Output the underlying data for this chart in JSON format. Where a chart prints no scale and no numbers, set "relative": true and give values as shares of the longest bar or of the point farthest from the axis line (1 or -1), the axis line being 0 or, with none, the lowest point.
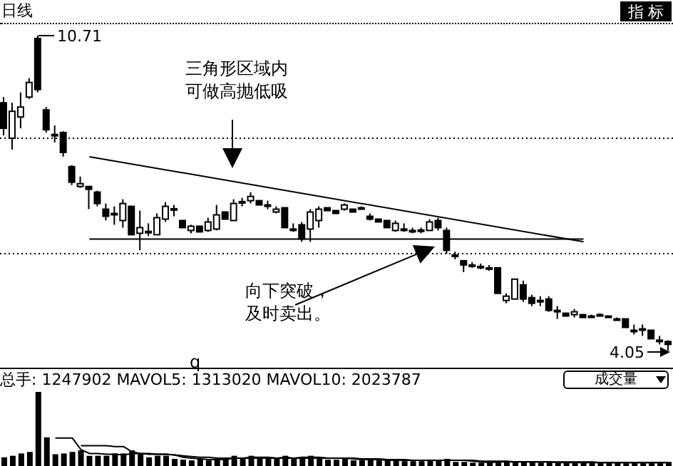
{
  "chart_data": [
    {
      "type": "candlestick",
      "title": "日线",
      "tick_labels": false,
      "categories": [
        null,
        null,
        null,
        null,
        null,
        null,
        null,
        null,
        null,
        null,
        null,
        null,
        null,
        null,
        null,
        null,
        null,
        null,
        null,
        null,
        null,
        null,
        null,
        null,
        null,
        null,
        null,
        null,
        null,
        null,
        null,
        null,
        null,
        null,
        null,
        null,
        null,
        null,
        null,
        null,
        null,
        null,
        null,
        null,
        null,
        null,
        null,
        null,
        null,
        null,
        null,
        null,
        null,
        null,
        null,
        null,
        null,
        null,
        null,
        null,
        null,
        null,
        null,
        null,
        null,
        null,
        null,
        null,
        null,
        null,
        null,
        null,
        null,
        null,
        null,
        null,
        null,
        null,
        null
      ],
      "ohlc": [
        [
          9.29,
          9.41,
          8.6,
          8.75
        ],
        [
          8.54,
          9.29,
          8.3,
          9.11
        ],
        [
          8.99,
          9.51,
          8.75,
          9.2
        ],
        [
          9.41,
          9.81,
          9.37,
          9.72
        ],
        [
          10.65,
          10.71,
          9.51,
          9.57
        ],
        [
          9.14,
          9.2,
          8.66,
          8.72
        ],
        [
          8.62,
          8.81,
          8.45,
          8.6
        ],
        [
          8.66,
          8.69,
          8.15,
          8.24
        ],
        [
          7.94,
          7.97,
          7.55,
          7.61
        ],
        [
          7.52,
          7.73,
          7.49,
          7.58
        ],
        [
          7.52,
          7.52,
          7.04,
          7.46
        ],
        [
          7.4,
          7.43,
          7.1,
          7.16
        ],
        [
          7.04,
          7.16,
          6.8,
          6.89
        ],
        [
          6.95,
          7.1,
          6.71,
          6.94
        ],
        [
          6.8,
          7.25,
          6.65,
          7.16
        ],
        [
          7.1,
          7.1,
          6.5,
          6.5
        ],
        [
          6.53,
          7.01,
          6.17,
          6.65
        ],
        [
          6.56,
          6.74,
          6.47,
          6.57
        ],
        [
          6.5,
          6.95,
          6.5,
          6.86
        ],
        [
          6.83,
          7.19,
          6.77,
          7.1
        ],
        [
          7.04,
          7.13,
          6.89,
          7.05
        ],
        [
          6.8,
          6.8,
          6.65,
          6.65
        ],
        [
          6.59,
          6.71,
          6.53,
          6.68
        ],
        [
          6.68,
          6.68,
          6.56,
          6.56
        ],
        [
          6.59,
          6.86,
          6.56,
          6.77
        ],
        [
          6.62,
          7.13,
          6.59,
          6.92
        ],
        [
          6.98,
          6.98,
          6.83,
          6.83
        ],
        [
          6.8,
          7.25,
          6.8,
          7.16
        ],
        [
          7.19,
          7.28,
          7.1,
          7.2
        ],
        [
          7.22,
          7.4,
          7.16,
          7.31
        ],
        [
          7.22,
          7.22,
          7.13,
          7.13
        ],
        [
          7.13,
          7.22,
          7.04,
          7.12
        ],
        [
          6.98,
          7.1,
          6.95,
          7.04
        ],
        [
          7.07,
          7.07,
          6.65,
          6.65
        ],
        [
          6.62,
          6.74,
          6.56,
          6.61
        ],
        [
          6.71,
          6.77,
          6.35,
          6.41
        ],
        [
          6.62,
          7.04,
          6.35,
          6.98
        ],
        [
          6.8,
          7.1,
          6.65,
          7.04
        ],
        [
          7.07,
          7.07,
          7.01,
          7.01
        ],
        [
          7.01,
          7.01,
          6.95,
          6.95
        ],
        [
          7.04,
          7.16,
          7.01,
          7.13
        ],
        [
          7.04,
          7.04,
          6.98,
          6.98
        ],
        [
          7.07,
          7.1,
          7.04,
          7.06
        ],
        [
          6.89,
          6.95,
          6.8,
          6.83
        ],
        [
          6.83,
          6.83,
          6.77,
          6.77
        ],
        [
          6.8,
          6.8,
          6.65,
          6.65
        ],
        [
          6.59,
          6.8,
          6.56,
          6.74
        ],
        [
          6.62,
          6.74,
          6.56,
          6.61
        ],
        [
          6.59,
          6.65,
          6.53,
          6.58
        ],
        [
          6.59,
          6.65,
          6.53,
          6.6
        ],
        [
          6.59,
          6.83,
          6.59,
          6.77
        ],
        [
          6.8,
          6.86,
          6.59,
          6.65
        ],
        [
          6.59,
          6.65,
          6.1,
          6.17
        ],
        [
          6.07,
          6.14,
          5.98,
          6.06
        ],
        [
          5.95,
          5.95,
          5.71,
          5.86
        ],
        [
          5.86,
          5.92,
          5.8,
          5.85
        ],
        [
          5.83,
          5.89,
          5.77,
          5.82
        ],
        [
          5.8,
          5.86,
          5.74,
          5.79
        ],
        [
          5.8,
          5.8,
          5.26,
          5.26
        ],
        [
          5.11,
          5.26,
          5.05,
          5.2
        ],
        [
          5.14,
          5.56,
          5.14,
          5.56
        ],
        [
          5.44,
          5.53,
          5.08,
          5.14
        ],
        [
          5.17,
          5.23,
          4.99,
          5.05
        ],
        [
          5.11,
          5.2,
          4.99,
          5.1
        ],
        [
          5.14,
          5.2,
          4.87,
          4.9
        ],
        [
          4.9,
          4.99,
          4.72,
          4.89
        ],
        [
          4.84,
          4.84,
          4.78,
          4.78
        ],
        [
          4.81,
          4.93,
          4.75,
          4.87
        ],
        [
          4.81,
          4.81,
          4.75,
          4.75
        ],
        [
          4.78,
          4.81,
          4.75,
          4.77
        ],
        [
          4.81,
          4.84,
          4.78,
          4.8
        ],
        [
          4.78,
          4.78,
          4.75,
          4.75
        ],
        [
          4.72,
          4.75,
          4.69,
          4.71
        ],
        [
          4.72,
          4.72,
          4.54,
          4.54
        ],
        [
          4.48,
          4.6,
          4.39,
          4.47
        ],
        [
          4.51,
          4.6,
          4.36,
          4.5
        ],
        [
          4.48,
          4.48,
          4.3,
          4.3
        ],
        [
          4.27,
          4.36,
          4.18,
          4.26
        ],
        [
          4.24,
          4.27,
          4.05,
          4.18
        ]
      ],
      "series": [
        {
          "type": "line",
          "values": [
            null,
            null,
            null,
            null,
            null,
            null,
            null,
            null,
            null,
            null,
            8.15,
            null,
            null,
            null,
            null,
            null,
            null,
            null,
            null,
            null,
            null,
            null,
            null,
            null,
            null,
            null,
            null,
            null,
            null,
            null,
            null,
            null,
            null,
            null,
            null,
            null,
            null,
            null,
            null,
            null,
            null,
            null,
            null,
            null,
            null,
            null,
            null,
            null,
            null,
            null,
            null,
            null,
            null,
            null,
            null,
            null,
            null,
            null,
            null,
            null,
            null,
            null,
            null,
            null,
            null,
            null,
            null,
            null,
            6.35,
            null,
            null,
            null,
            null,
            null,
            null,
            null,
            null,
            null,
            null
          ],
          "color": "#000000"
        },
        {
          "type": "line",
          "values": [
            null,
            null,
            null,
            null,
            null,
            null,
            null,
            null,
            null,
            null,
            6.41,
            null,
            null,
            null,
            null,
            null,
            null,
            null,
            null,
            null,
            null,
            null,
            null,
            null,
            null,
            null,
            null,
            null,
            null,
            null,
            null,
            null,
            null,
            null,
            null,
            null,
            null,
            null,
            null,
            null,
            null,
            null,
            null,
            null,
            null,
            null,
            null,
            null,
            null,
            null,
            null,
            null,
            null,
            null,
            null,
            null,
            null,
            null,
            null,
            null,
            null,
            null,
            null,
            null,
            null,
            null,
            null,
            null,
            6.41,
            null,
            null,
            null,
            null,
            null,
            null,
            null,
            null,
            null,
            null
          ],
          "color": "#000000"
        }
      ],
      "ref_lines": [
        {
          "axis": "y",
          "value": 8.54,
          "color": "#000000",
          "line_style": "dotted"
        },
        {
          "axis": "y",
          "value": 6.1,
          "color": "#000000",
          "line_style": "dotted"
        }
      ],
      "annotations": [
        "三角形区域内",
        "可做高抛低吸",
        "向下突破，",
        "及时卖出。",
        "10.71",
        "4.05",
        "q",
        "指 标"
      ]
    },
    {
      "type": "bar",
      "relative": true,
      "tick_labels": false,
      "title": "总手: 1247902 MAVOL5: 1313020 MAVOL10: 2023787",
      "categories": [
        null,
        null,
        null,
        null,
        null,
        null,
        null,
        null,
        null,
        null,
        null,
        null,
        null,
        null,
        null,
        null,
        null,
        null,
        null,
        null,
        null,
        null,
        null,
        null,
        null,
        null,
        null,
        null,
        null,
        null,
        null,
        null,
        null,
        null,
        null,
        null,
        null,
        null,
        null,
        null,
        null,
        null,
        null,
        null,
        null,
        null,
        null,
        null,
        null,
        null,
        null,
        null,
        null,
        null,
        null,
        null,
        null,
        null,
        null,
        null,
        null,
        null,
        null,
        null,
        null,
        null,
        null,
        null,
        null,
        null,
        null,
        null,
        null,
        null,
        null,
        null,
        null,
        null,
        null
      ],
      "series": [
        {
          "color": "#000000",
          "values": [
            0.15,
            0.17,
            0.2,
            0.22,
            1,
            0.41,
            0.19,
            0.2,
            0.22,
            0.24,
            0.17,
            0.17,
            0.17,
            0.2,
            0.2,
            0.24,
            0.2,
            0.15,
            0.17,
            0.17,
            0.13,
            0.12,
            0.11,
            0.13,
            0.11,
            0.14,
            0.13,
            0.17,
            0.14,
            0.17,
            0.13,
            0.15,
            0.13,
            0.17,
            0.13,
            0.15,
            0.17,
            0.15,
            0.12,
            0.12,
            0.13,
            0.11,
            0.11,
            0.12,
            0.11,
            0.11,
            0.12,
            0.1,
            0.1,
            0.1,
            0.11,
            0.12,
            0.13,
            0.09,
            0.09,
            0.08,
            0.08,
            0.08,
            0.1,
            0.09,
            0.1,
            0.09,
            0.09,
            0.08,
            0.09,
            0.08,
            0.08,
            0.08,
            0.08,
            0.08,
            0.08,
            0.09,
            0.08,
            0.09,
            0.08,
            0.08,
            0.08,
            0.09,
            0.09
          ]
        },
        {
          "type": "line",
          "color": "#000000",
          "values": [
            null,
            null,
            null,
            null,
            null,
            null,
            0.4,
            0.4,
            0.4,
            0.25,
            0.2,
            0.2,
            0.19,
            0.19,
            0.18,
            0.2,
            0.2,
            0.2,
            0.19,
            0.19,
            0.18,
            0.15,
            0.14,
            0.13,
            0.12,
            0.12,
            0.12,
            0.14,
            0.14,
            0.15,
            0.15,
            0.15,
            0.14,
            0.15,
            0.14,
            0.15,
            0.15,
            0.15,
            0.14,
            0.14,
            0.14,
            0.13,
            0.12,
            0.12,
            0.12,
            0.11,
            0.11,
            0.11,
            0.11,
            0.11,
            0.11,
            0.11,
            0.11,
            0.11,
            0.11,
            0.1,
            0.09,
            0.08,
            0.09,
            0.09,
            0.09,
            0.09,
            0.09,
            0.09,
            0.09,
            0.08,
            0.08,
            0.08,
            0.08,
            0.08,
            0.08,
            0.08,
            0.08,
            0.08,
            0.08,
            0.08,
            0.08,
            0.08,
            0.08
          ]
        },
        {
          "type": "line",
          "color": "#000000",
          "values": [
            null,
            null,
            null,
            null,
            null,
            null,
            null,
            null,
            null,
            0.3,
            0.3,
            0.3,
            0.3,
            0.29,
            0.29,
            0.22,
            0.2,
            0.19,
            0.19,
            0.19,
            0.18,
            0.17,
            0.16,
            0.15,
            0.15,
            0.14,
            0.14,
            0.14,
            0.14,
            0.14,
            0.14,
            0.14,
            0.14,
            0.14,
            0.14,
            0.14,
            0.14,
            0.14,
            0.14,
            0.14,
            0.14,
            0.14,
            0.13,
            0.13,
            0.13,
            0.12,
            0.12,
            0.12,
            0.11,
            0.11,
            0.11,
            0.11,
            0.11,
            0.11,
            0.11,
            0.11,
            0.1,
            0.1,
            0.1,
            0.1,
            0.09,
            0.09,
            0.09,
            0.09,
            0.09,
            0.09,
            0.09,
            0.09,
            0.09,
            0.09,
            0.08,
            0.08,
            0.08,
            0.08,
            0.08,
            0.08,
            0.08,
            0.08,
            0.08
          ]
        }
      ],
      "annotations": [
        "成交量"
      ]
    }
  ]
}
